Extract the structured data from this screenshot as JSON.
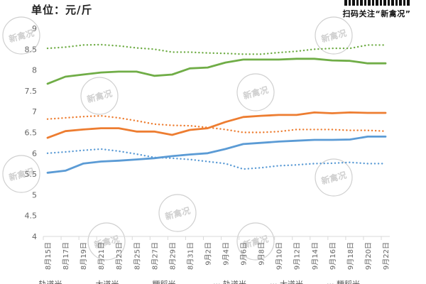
{
  "header": {
    "unit_label": "单位：元/斤",
    "brand_text": "扫码关注“新禽况”",
    "watermark_text": "新禽况"
  },
  "chart_data": {
    "type": "line",
    "title": "",
    "xlabel": "",
    "ylabel": "单位：元/斤",
    "ylim": [
      4,
      9
    ],
    "yticks": [
      4,
      4.5,
      5,
      5.5,
      6,
      6.5,
      7,
      7.5,
      8,
      8.5,
      9
    ],
    "grid": false,
    "legend_position": "bottom (cut off)",
    "categories": [
      "8月15日",
      "8月17日",
      "8月19日",
      "8月21日",
      "8月23日",
      "8月25日",
      "8月27日",
      "8月29日",
      "8月31日",
      "9月2日",
      "9月4日",
      "9月6日",
      "9月8日",
      "9月10日",
      "9月12日",
      "9月14日",
      "9月16日",
      "9月18日",
      "9月20日",
      "9月22日"
    ],
    "series": [
      {
        "name": "series-green-solid",
        "color": "#70ad47",
        "style": "solid",
        "values": [
          7.67,
          7.84,
          7.89,
          7.94,
          7.96,
          7.96,
          7.86,
          7.89,
          8.04,
          8.06,
          8.18,
          8.25,
          8.25,
          8.25,
          8.27,
          8.27,
          8.23,
          8.22,
          8.16,
          8.16
        ]
      },
      {
        "name": "series-green-dotted",
        "color": "#70ad47",
        "style": "dotted",
        "values": [
          8.52,
          8.55,
          8.6,
          8.61,
          8.58,
          8.53,
          8.5,
          8.43,
          8.43,
          8.41,
          8.4,
          8.38,
          8.38,
          8.42,
          8.45,
          8.5,
          8.52,
          8.52,
          8.6,
          8.6
        ]
      },
      {
        "name": "series-orange-solid",
        "color": "#ed7d31",
        "style": "solid",
        "values": [
          6.37,
          6.53,
          6.57,
          6.6,
          6.6,
          6.52,
          6.52,
          6.44,
          6.56,
          6.6,
          6.75,
          6.87,
          6.9,
          6.92,
          6.92,
          6.98,
          6.96,
          6.98,
          6.97,
          6.97
        ]
      },
      {
        "name": "series-orange-dotted",
        "color": "#ed7d31",
        "style": "dotted",
        "values": [
          6.82,
          6.85,
          6.88,
          6.9,
          6.85,
          6.78,
          6.7,
          6.67,
          6.66,
          6.62,
          6.57,
          6.5,
          6.5,
          6.52,
          6.57,
          6.57,
          6.57,
          6.55,
          6.55,
          6.53
        ]
      },
      {
        "name": "series-blue-solid",
        "color": "#5b9bd5",
        "style": "solid",
        "values": [
          5.53,
          5.58,
          5.75,
          5.8,
          5.82,
          5.85,
          5.88,
          5.93,
          5.97,
          6.0,
          6.1,
          6.22,
          6.25,
          6.28,
          6.3,
          6.32,
          6.32,
          6.33,
          6.4,
          6.4
        ]
      },
      {
        "name": "series-blue-dotted",
        "color": "#5b9bd5",
        "style": "dotted",
        "values": [
          6.0,
          6.03,
          6.07,
          6.1,
          6.05,
          5.98,
          5.9,
          5.88,
          5.85,
          5.8,
          5.75,
          5.62,
          5.65,
          5.7,
          5.72,
          5.75,
          5.76,
          5.78,
          5.75,
          5.75
        ]
      }
    ],
    "legend": [
      "— 轨道米",
      "— 大道米",
      "— 粳稻米",
      "··· 轨道米",
      "··· 大道米",
      "··· 粳稻米"
    ]
  }
}
